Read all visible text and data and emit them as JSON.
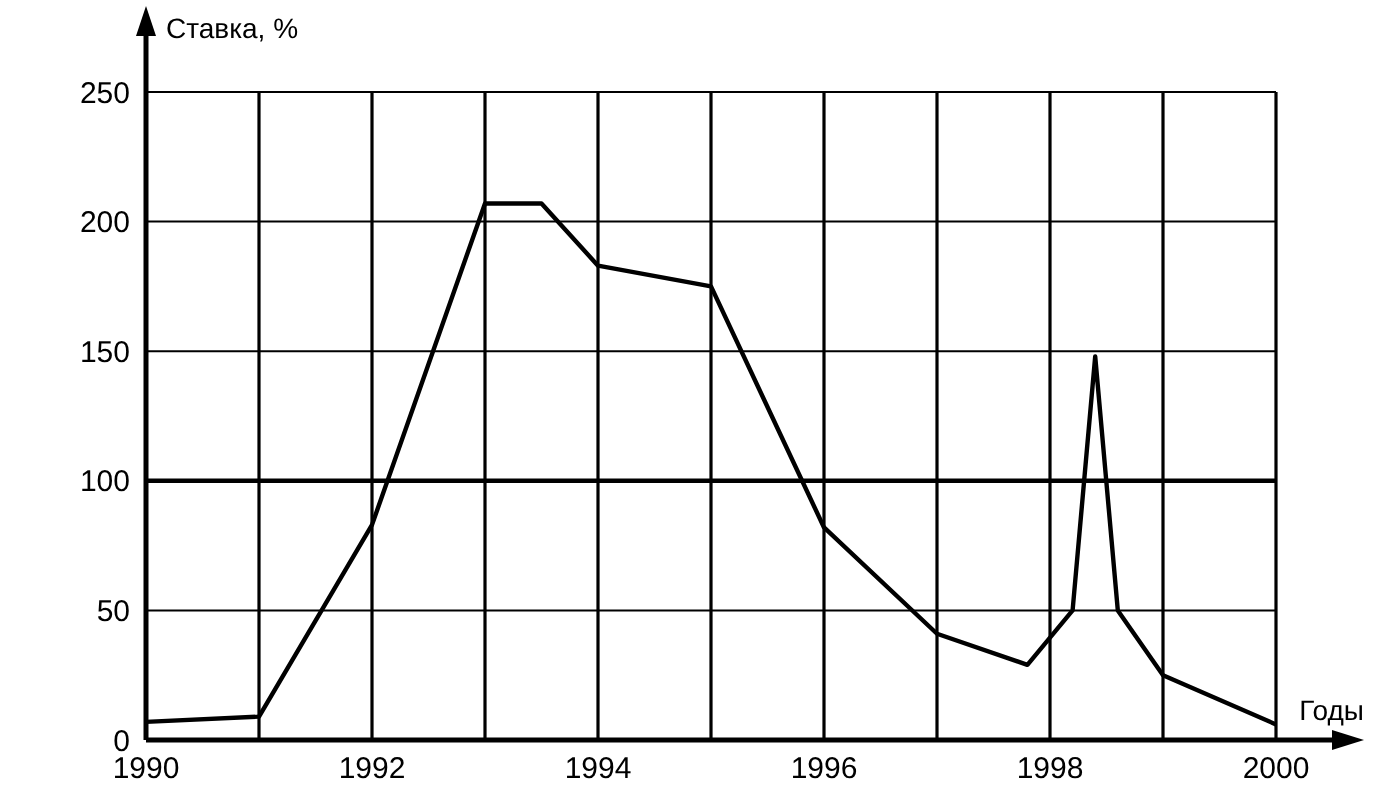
{
  "chart_data": {
    "type": "line",
    "xlabel": "Годы",
    "ylabel": "Ставка, %",
    "x": [
      1990,
      1991,
      1992,
      1993,
      1993.5,
      1994,
      1995,
      1996,
      1997,
      1997.8,
      1998.2,
      1998.4,
      1998.6,
      1999,
      2000
    ],
    "series": [
      {
        "color": "#000000",
        "values": [
          7,
          9,
          83,
          207,
          207,
          183,
          175,
          82,
          41,
          29,
          50,
          148,
          50,
          25,
          6
        ]
      }
    ],
    "xlim": [
      1990,
      2000
    ],
    "xticks": [
      1990,
      {
        "value": 1991,
        "label": null
      },
      1992,
      {
        "value": 1993,
        "label": null
      },
      1994,
      {
        "value": 1995,
        "label": null
      },
      1996,
      {
        "value": 1997,
        "label": null
      },
      1998,
      {
        "value": 1999,
        "label": null
      },
      2000
    ],
    "ylim": [
      0,
      250
    ],
    "yticks": [
      0,
      50,
      100,
      150,
      200,
      250
    ],
    "ref_lines": [
      {
        "axis": "y",
        "value": 100,
        "color": "#000000"
      }
    ],
    "grid": true,
    "marker": "none",
    "line_style": "solid"
  }
}
